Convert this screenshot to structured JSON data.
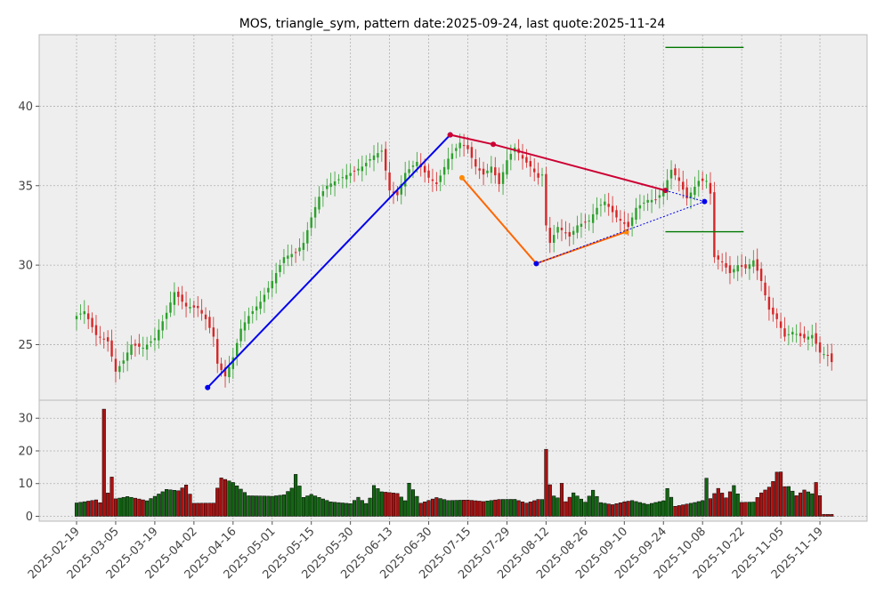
{
  "chart_data": {
    "type": "candlestick",
    "title": "MOS, triangle_sym, pattern date:2025-09-24, last quote:2025-11-24",
    "grid": true,
    "price_panel": {
      "ylim": [
        21.5,
        44.5
      ],
      "yticks": [
        "25",
        "30",
        "35",
        "40"
      ],
      "ytick_values": [
        25,
        30,
        35,
        40
      ]
    },
    "volume_panel": {
      "ylim": [
        -1.5,
        35.5
      ],
      "yticks": [
        "0",
        "10",
        "20",
        "30"
      ],
      "ytick_values": [
        0,
        10,
        20,
        30
      ]
    },
    "x_tick_labels": [
      "2025-02-19",
      "2025-03-05",
      "2025-03-19",
      "2025-04-02",
      "2025-04-16",
      "2025-05-01",
      "2025-05-15",
      "2025-05-30",
      "2025-06-13",
      "2025-06-30",
      "2025-07-15",
      "2025-07-29",
      "2025-08-12",
      "2025-08-26",
      "2025-09-10",
      "2025-09-24",
      "2025-10-08",
      "2025-10-22",
      "2025-11-05",
      "2025-11-19"
    ],
    "x_tick_index": [
      0,
      10,
      20,
      30,
      40,
      50,
      60,
      70,
      80,
      90,
      100,
      110,
      120,
      130,
      140,
      150,
      160,
      170,
      180,
      190
    ],
    "n_bars": 194,
    "close_anchors": [
      [
        0,
        26.8
      ],
      [
        2,
        27.1
      ],
      [
        5,
        25.6
      ],
      [
        8,
        25.2
      ],
      [
        10,
        23.3
      ],
      [
        12,
        24.0
      ],
      [
        14,
        25.0
      ],
      [
        17,
        24.8
      ],
      [
        20,
        25.4
      ],
      [
        23,
        27.0
      ],
      [
        25,
        28.3
      ],
      [
        28,
        27.4
      ],
      [
        31,
        27.3
      ],
      [
        33,
        26.6
      ],
      [
        35,
        25.5
      ],
      [
        36,
        23.8
      ],
      [
        38,
        23.0
      ],
      [
        40,
        24.2
      ],
      [
        42,
        26.0
      ],
      [
        44,
        26.8
      ],
      [
        47,
        27.7
      ],
      [
        50,
        29.0
      ],
      [
        53,
        30.5
      ],
      [
        56,
        30.8
      ],
      [
        58,
        31.4
      ],
      [
        60,
        33.0
      ],
      [
        62,
        34.3
      ],
      [
        64,
        35.0
      ],
      [
        67,
        35.4
      ],
      [
        70,
        35.8
      ],
      [
        73,
        36.2
      ],
      [
        76,
        36.9
      ],
      [
        78,
        37.2
      ],
      [
        80,
        34.7
      ],
      [
        82,
        34.4
      ],
      [
        84,
        35.8
      ],
      [
        87,
        36.5
      ],
      [
        90,
        35.5
      ],
      [
        92,
        35.1
      ],
      [
        95,
        36.7
      ],
      [
        98,
        37.7
      ],
      [
        100,
        37.3
      ],
      [
        102,
        36.2
      ],
      [
        104,
        35.7
      ],
      [
        106,
        36.2
      ],
      [
        108,
        35.1
      ],
      [
        110,
        36.6
      ],
      [
        112,
        37.4
      ],
      [
        114,
        36.7
      ],
      [
        116,
        36.2
      ],
      [
        118,
        35.5
      ],
      [
        119,
        35.7
      ],
      [
        120,
        32.5
      ],
      [
        121,
        31.4
      ],
      [
        123,
        32.4
      ],
      [
        126,
        31.8
      ],
      [
        128,
        32.5
      ],
      [
        131,
        32.8
      ],
      [
        133,
        33.6
      ],
      [
        135,
        34.0
      ],
      [
        138,
        33.0
      ],
      [
        141,
        32.4
      ],
      [
        143,
        33.6
      ],
      [
        146,
        34.1
      ],
      [
        148,
        34.1
      ],
      [
        150,
        34.7
      ],
      [
        152,
        36.0
      ],
      [
        154,
        35.3
      ],
      [
        156,
        34.2
      ],
      [
        159,
        35.3
      ],
      [
        161,
        35.3
      ],
      [
        162,
        34.5
      ],
      [
        163,
        30.5
      ],
      [
        165,
        30.2
      ],
      [
        167,
        29.5
      ],
      [
        169,
        30.0
      ],
      [
        171,
        29.8
      ],
      [
        173,
        30.3
      ],
      [
        175,
        29.0
      ],
      [
        177,
        27.2
      ],
      [
        179,
        26.6
      ],
      [
        181,
        25.5
      ],
      [
        183,
        25.8
      ],
      [
        186,
        25.4
      ],
      [
        188,
        25.6
      ],
      [
        190,
        24.5
      ],
      [
        192,
        24.3
      ],
      [
        193,
        23.9
      ]
    ],
    "volume_anchors": [
      [
        0,
        4.8
      ],
      [
        5,
        5.5
      ],
      [
        6,
        4.5
      ],
      [
        7,
        35.0
      ],
      [
        8,
        7.5
      ],
      [
        9,
        12.5
      ],
      [
        10,
        5.5
      ],
      [
        13,
        6.0
      ],
      [
        18,
        4.5
      ],
      [
        23,
        7.5
      ],
      [
        26,
        7.0
      ],
      [
        28,
        8.5
      ],
      [
        30,
        3.5
      ],
      [
        35,
        3.5
      ],
      [
        36,
        7.5
      ],
      [
        37,
        10.2
      ],
      [
        40,
        9.0
      ],
      [
        44,
        5.5
      ],
      [
        50,
        5.5
      ],
      [
        53,
        6.0
      ],
      [
        55,
        8.0
      ],
      [
        56,
        12.0
      ],
      [
        58,
        5.5
      ],
      [
        60,
        6.5
      ],
      [
        65,
        4.5
      ],
      [
        70,
        4.2
      ],
      [
        72,
        6.5
      ],
      [
        74,
        4.5
      ],
      [
        75,
        6.5
      ],
      [
        76,
        11.0
      ],
      [
        78,
        8.5
      ],
      [
        80,
        8.0
      ],
      [
        82,
        7.5
      ],
      [
        84,
        5.0
      ],
      [
        85,
        10.5
      ],
      [
        88,
        4.0
      ],
      [
        92,
        5.5
      ],
      [
        95,
        4.5
      ],
      [
        100,
        4.5
      ],
      [
        104,
        4.0
      ],
      [
        108,
        4.5
      ],
      [
        112,
        4.5
      ],
      [
        115,
        3.5
      ],
      [
        118,
        4.5
      ],
      [
        119,
        4.5
      ],
      [
        120,
        18.0
      ],
      [
        121,
        8.5
      ],
      [
        122,
        5.5
      ],
      [
        123,
        5.0
      ],
      [
        124,
        9.0
      ],
      [
        125,
        4.0
      ],
      [
        127,
        6.5
      ],
      [
        130,
        4.0
      ],
      [
        132,
        7.5
      ],
      [
        134,
        4.0
      ],
      [
        137,
        3.5
      ],
      [
        140,
        4.5
      ],
      [
        142,
        5.0
      ],
      [
        146,
        4.0
      ],
      [
        150,
        5.5
      ],
      [
        151,
        10.0
      ],
      [
        153,
        3.5
      ],
      [
        158,
        4.5
      ],
      [
        160,
        5.0
      ],
      [
        161,
        12.0
      ],
      [
        162,
        5.5
      ],
      [
        164,
        8.5
      ],
      [
        166,
        5.5
      ],
      [
        168,
        9.0
      ],
      [
        170,
        4.0
      ],
      [
        173,
        4.0
      ],
      [
        175,
        6.5
      ],
      [
        177,
        8.0
      ],
      [
        178,
        9.5
      ],
      [
        179,
        12.0
      ],
      [
        180,
        12.0
      ],
      [
        181,
        8.0
      ],
      [
        182,
        8.0
      ],
      [
        184,
        5.5
      ],
      [
        186,
        7.0
      ],
      [
        188,
        6.0
      ],
      [
        189,
        9.0
      ],
      [
        190,
        5.5
      ],
      [
        191,
        0.5
      ]
    ],
    "pattern_lines": [
      {
        "color": "#0000ee",
        "width": 2,
        "dashed": false,
        "marker_color": "#0000ee",
        "points": [
          [
            33.5,
            22.3
          ],
          [
            95.5,
            38.2
          ]
        ]
      },
      {
        "color": "#cc0033",
        "width": 2,
        "dashed": false,
        "marker_color": "#cc0033",
        "points": [
          [
            95.5,
            38.2
          ],
          [
            106.5,
            37.6
          ],
          [
            150.5,
            34.7
          ]
        ]
      },
      {
        "color": "#ff6600",
        "width": 2,
        "dashed": false,
        "marker_color": "#ff8800",
        "points": [
          [
            98.5,
            35.5
          ],
          [
            117.5,
            30.1
          ],
          [
            140.5,
            32.1
          ]
        ]
      },
      {
        "color": "#0000ee",
        "width": 1,
        "dashed": true,
        "marker_color": "#0000ee",
        "points": [
          [
            117.5,
            30.1
          ],
          [
            160.5,
            34.0
          ]
        ]
      },
      {
        "color": "#0000ee",
        "width": 1,
        "dashed": true,
        "marker_color": null,
        "points": [
          [
            150.5,
            34.7
          ],
          [
            160.5,
            34.0
          ]
        ]
      }
    ],
    "target_lines": [
      {
        "color": "#007700",
        "y": 43.7,
        "x": [
          150.5,
          170.5
        ]
      },
      {
        "color": "#007700",
        "y": 32.1,
        "x": [
          150.5,
          170.5
        ]
      }
    ]
  }
}
